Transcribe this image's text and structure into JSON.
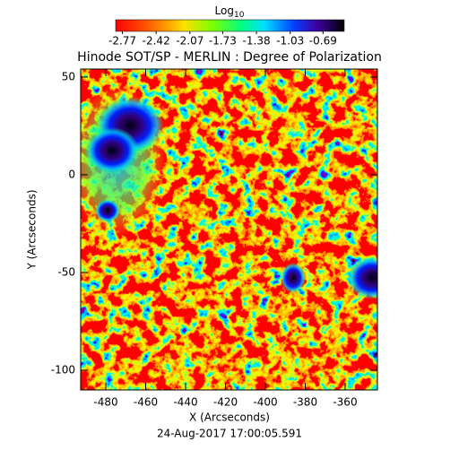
{
  "chart_data": {
    "type": "heatmap",
    "title": "Hinode SOT/SP - MERLIN : Degree of Polarization",
    "xlabel": "X (Arcseconds)",
    "ylabel": "Y (Arcseconds)",
    "footer": "24-Aug-2017 17:00:05.591",
    "xlim": [
      -492.6,
      -343.8
    ],
    "xticks": [
      -480,
      -460,
      -440,
      -420,
      -400,
      -380,
      -360
    ],
    "ylim": [
      -110.1,
      54.1
    ],
    "yticks": [
      -100,
      -50,
      0,
      50
    ],
    "colorbar": {
      "label": "Log",
      "label_subscript": "10",
      "lim": [
        -2.84,
        -0.47
      ],
      "ticks": [
        -2.77,
        -2.42,
        -2.07,
        -1.73,
        -1.38,
        -1.03,
        -0.69
      ]
    }
  }
}
